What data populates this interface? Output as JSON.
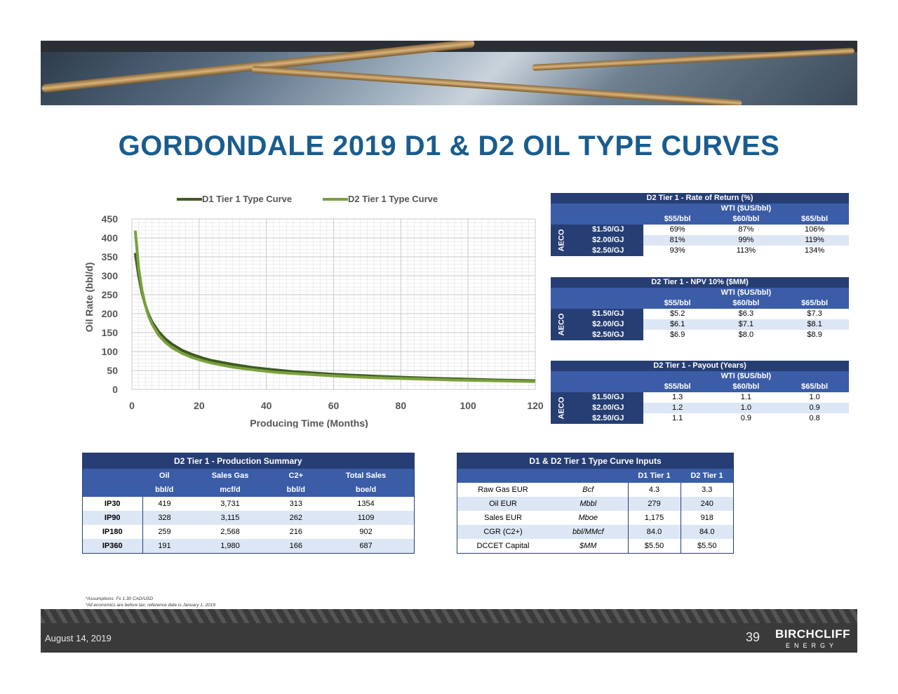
{
  "page": {
    "title": "GORDONDALE 2019 D1 & D2 OIL TYPE CURVES",
    "date": "August 14, 2019",
    "page_number": "39",
    "logo": "BIRCHCLIFF",
    "logo_sub": "ENERGY",
    "notes": [
      "*Assumptions: Fx 1.30 CAD/USD",
      "*All economics are before tax; reference date is January 1, 2019"
    ]
  },
  "chart_data": {
    "type": "line",
    "title": "",
    "xlabel": "Producing Time (Months)",
    "ylabel": "Oil Rate (bbl/d)",
    "xlim": [
      0,
      120
    ],
    "ylim": [
      0,
      450
    ],
    "xticks": [
      0,
      20,
      40,
      60,
      80,
      100,
      120
    ],
    "yticks": [
      0,
      50,
      100,
      150,
      200,
      250,
      300,
      350,
      400,
      450
    ],
    "grid": true,
    "legend_position": "top",
    "series": [
      {
        "name": "D1 Tier 1 Type Curve",
        "color": "#3e5a22",
        "x": [
          1,
          2,
          3,
          4,
          5,
          6,
          8,
          10,
          12,
          15,
          18,
          21,
          24,
          30,
          36,
          42,
          48,
          60,
          72,
          84,
          96,
          108,
          120
        ],
        "y": [
          360,
          300,
          255,
          222,
          197,
          178,
          152,
          133,
          119,
          103,
          92,
          83,
          76,
          66,
          58,
          52,
          47,
          40,
          35,
          31,
          28,
          25,
          23
        ]
      },
      {
        "name": "D2 Tier 1 Type Curve",
        "color": "#7aa03c",
        "x": [
          1,
          2,
          3,
          4,
          5,
          6,
          8,
          10,
          12,
          15,
          18,
          21,
          24,
          30,
          36,
          42,
          48,
          60,
          72,
          84,
          96,
          108,
          120
        ],
        "y": [
          419,
          320,
          262,
          222,
          193,
          172,
          143,
          124,
          110,
          95,
          84,
          76,
          69,
          59,
          52,
          46,
          42,
          36,
          31,
          28,
          25,
          23,
          21
        ]
      }
    ]
  },
  "ror_table": {
    "title": "D2 Tier 1 - Rate of Return (%)",
    "wti": "WTI ($US/bbl)",
    "aeco": "AECO",
    "cols": [
      "$55/bbl",
      "$60/bbl",
      "$65/bbl"
    ],
    "rows": [
      {
        "label": "$1.50/GJ",
        "values": [
          "69%",
          "87%",
          "106%"
        ]
      },
      {
        "label": "$2.00/GJ",
        "values": [
          "81%",
          "99%",
          "119%"
        ]
      },
      {
        "label": "$2.50/GJ",
        "values": [
          "93%",
          "113%",
          "134%"
        ]
      }
    ]
  },
  "npv_table": {
    "title": "D2 Tier 1 - NPV 10% ($MM)",
    "wti": "WTI ($US/bbl)",
    "aeco": "AECO",
    "cols": [
      "$55/bbl",
      "$60/bbl",
      "$65/bbl"
    ],
    "rows": [
      {
        "label": "$1.50/GJ",
        "values": [
          "$5.2",
          "$6.3",
          "$7.3"
        ]
      },
      {
        "label": "$2.00/GJ",
        "values": [
          "$6.1",
          "$7.1",
          "$8.1"
        ]
      },
      {
        "label": "$2.50/GJ",
        "values": [
          "$6.9",
          "$8.0",
          "$8.9"
        ]
      }
    ]
  },
  "payout_table": {
    "title": "D2 Tier 1 - Payout (Years)",
    "wti": "WTI ($US/bbl)",
    "aeco": "AECO",
    "cols": [
      "$55/bbl",
      "$60/bbl",
      "$65/bbl"
    ],
    "rows": [
      {
        "label": "$1.50/GJ",
        "values": [
          "1.3",
          "1.1",
          "1.0"
        ]
      },
      {
        "label": "$2.00/GJ",
        "values": [
          "1.2",
          "1.0",
          "0.9"
        ]
      },
      {
        "label": "$2.50/GJ",
        "values": [
          "1.1",
          "0.9",
          "0.8"
        ]
      }
    ]
  },
  "production_summary": {
    "title": "D2 Tier 1 - Production Summary",
    "headers": [
      "Oil",
      "Sales Gas",
      "C2+",
      "Total Sales"
    ],
    "units": [
      "bbl/d",
      "mcf/d",
      "bbl/d",
      "boe/d"
    ],
    "rows": [
      {
        "label": "IP30",
        "values": [
          "419",
          "3,731",
          "313",
          "1354"
        ]
      },
      {
        "label": "IP90",
        "values": [
          "328",
          "3,115",
          "262",
          "1109"
        ]
      },
      {
        "label": "IP180",
        "values": [
          "259",
          "2,568",
          "216",
          "902"
        ]
      },
      {
        "label": "IP360",
        "values": [
          "191",
          "1,980",
          "166",
          "687"
        ]
      }
    ]
  },
  "type_curve_inputs": {
    "title": "D1 & D2 Tier 1 Type Curve Inputs",
    "headers": [
      "D1 Tier 1",
      "D2 Tier 1"
    ],
    "rows": [
      {
        "label": "Raw Gas EUR",
        "unit": "Bcf",
        "values": [
          "4.3",
          "3.3"
        ]
      },
      {
        "label": "Oil EUR",
        "unit": "Mbbl",
        "values": [
          "279",
          "240"
        ]
      },
      {
        "label": "Sales EUR",
        "unit": "Mboe",
        "values": [
          "1,175",
          "918"
        ]
      },
      {
        "label": "CGR (C2+)",
        "unit": "bbl/MMcf",
        "values": [
          "84.0",
          "84.0"
        ]
      },
      {
        "label": "DCCET Capital",
        "unit": "$MM",
        "values": [
          "$5.50",
          "$5.50"
        ]
      }
    ]
  }
}
